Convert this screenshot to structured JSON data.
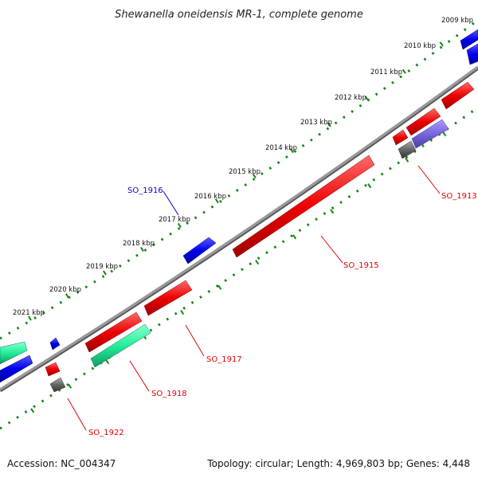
{
  "title": "Shewanella oneidensis MR-1, complete genome",
  "scale_labels": [
    "2009 kbp",
    "2010 kbp",
    "2011 kbp",
    "2012 kbp",
    "2013 kbp",
    "2014 kbp",
    "2015 kbp",
    "2016 kbp",
    "2017 kbp",
    "2018 kbp",
    "2019 kbp",
    "2020 kbp",
    "2021 kbp"
  ],
  "gene_labels": [
    {
      "text": "SO_1913",
      "color": "#e00000"
    },
    {
      "text": "SO_1915",
      "color": "#e00000"
    },
    {
      "text": "SO_1916",
      "color": "#0000c8"
    },
    {
      "text": "SO_1917",
      "color": "#e00000"
    },
    {
      "text": "SO_1918",
      "color": "#e00000"
    },
    {
      "text": "SO_1922",
      "color": "#e00000"
    }
  ],
  "footer": {
    "accession": "Accession: NC_004347",
    "summary": "Topology: circular; Length: 4,969,803 bp; Genes: 4,448"
  },
  "colors": {
    "backbone": "#8a8a8a",
    "scale_ticks": "#118811",
    "forward_gene": "#ee0000",
    "reverse_gene": "#0000ee",
    "rna_gene": "#22ee99",
    "other_feature": "#666666",
    "highlight_feature": "#7766dd"
  }
}
